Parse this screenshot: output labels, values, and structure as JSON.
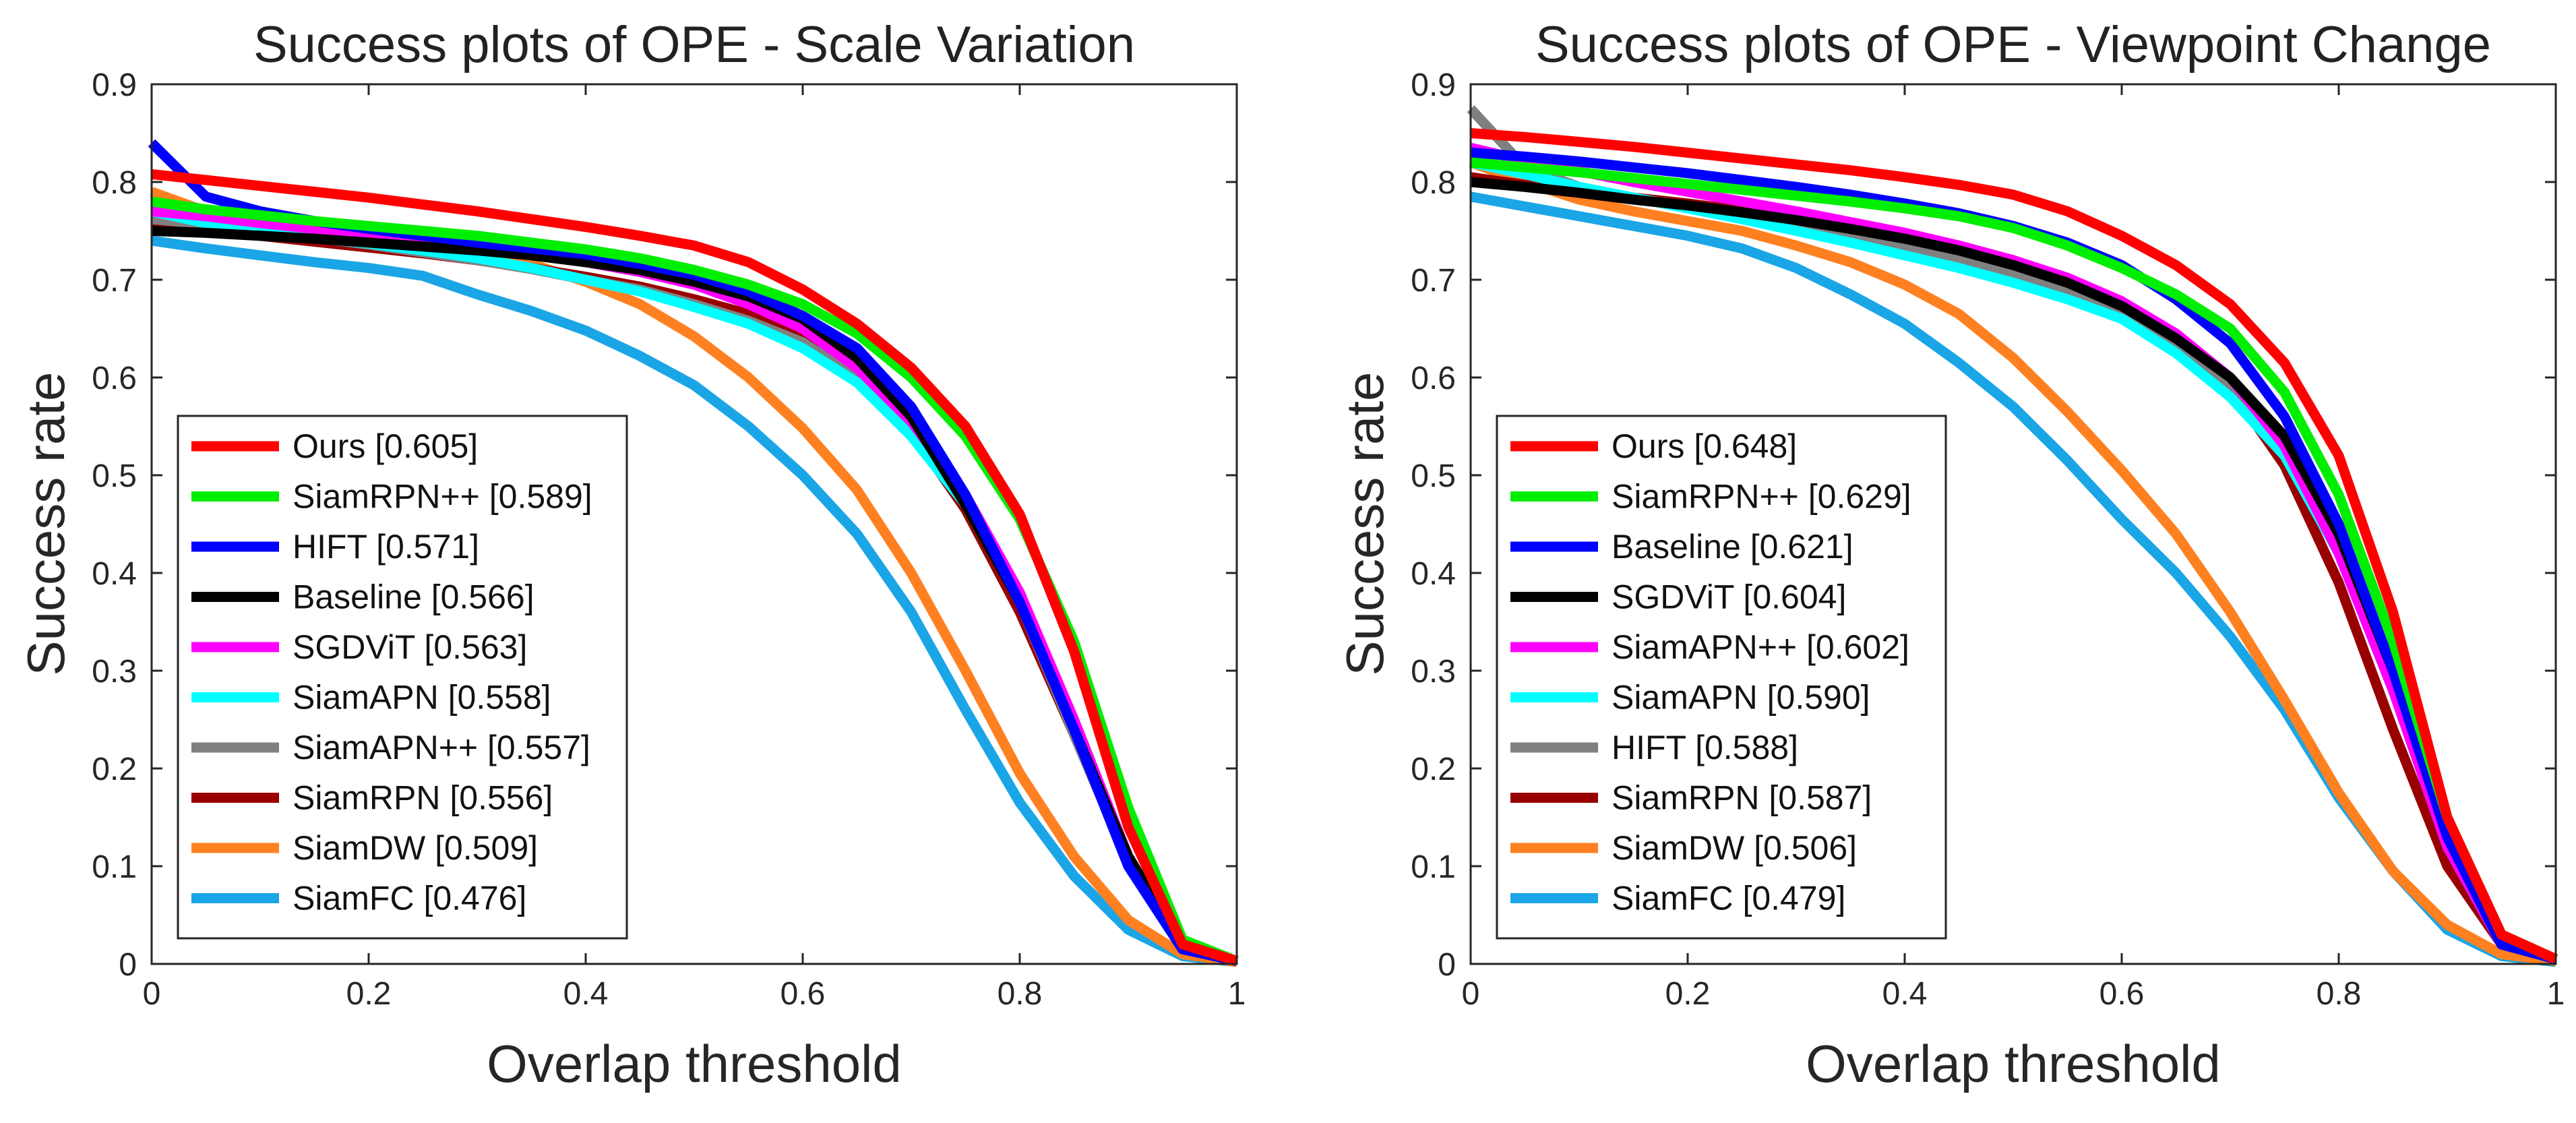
{
  "chart_data": [
    {
      "type": "line",
      "title": "Success plots of OPE - Scale Variation",
      "xlabel": "Overlap threshold",
      "ylabel": "Success rate",
      "xlim": [
        0,
        1
      ],
      "ylim": [
        0,
        0.9
      ],
      "xticks": [
        "0",
        "0.2",
        "0.4",
        "0.6",
        "0.8",
        "1"
      ],
      "yticks": [
        "0",
        "0.1",
        "0.2",
        "0.3",
        "0.4",
        "0.5",
        "0.6",
        "0.7",
        "0.8",
        "0.9"
      ],
      "legend_position": "bottom-left",
      "x": [
        0,
        0.05,
        0.1,
        0.15,
        0.2,
        0.25,
        0.3,
        0.35,
        0.4,
        0.45,
        0.5,
        0.55,
        0.6,
        0.65,
        0.7,
        0.75,
        0.8,
        0.85,
        0.9,
        0.95,
        1.0
      ],
      "series": [
        {
          "name": "Ours [0.605]",
          "color": "#ff0000",
          "values": [
            0.808,
            0.802,
            0.796,
            0.79,
            0.784,
            0.777,
            0.77,
            0.762,
            0.754,
            0.745,
            0.735,
            0.718,
            0.69,
            0.655,
            0.61,
            0.55,
            0.46,
            0.32,
            0.14,
            0.02,
            0.003
          ]
        },
        {
          "name": "SiamRPN++ [0.589]",
          "color": "#00ee00",
          "values": [
            0.78,
            0.772,
            0.766,
            0.76,
            0.755,
            0.75,
            0.745,
            0.738,
            0.731,
            0.722,
            0.71,
            0.695,
            0.675,
            0.645,
            0.6,
            0.54,
            0.455,
            0.33,
            0.16,
            0.025,
            0.003
          ]
        },
        {
          "name": "HIFT [0.571]",
          "color": "#0000ff",
          "values": [
            0.84,
            0.785,
            0.77,
            0.76,
            0.752,
            0.745,
            0.738,
            0.732,
            0.726,
            0.716,
            0.705,
            0.688,
            0.663,
            0.63,
            0.57,
            0.48,
            0.37,
            0.24,
            0.1,
            0.015,
            0.003
          ]
        },
        {
          "name": "Baseline [0.566]",
          "color": "#000000",
          "values": [
            0.75,
            0.748,
            0.745,
            0.742,
            0.738,
            0.734,
            0.73,
            0.725,
            0.718,
            0.71,
            0.698,
            0.683,
            0.66,
            0.62,
            0.56,
            0.47,
            0.37,
            0.24,
            0.11,
            0.018,
            0.003
          ]
        },
        {
          "name": "SGDViT [0.563]",
          "color": "#ff00ff",
          "values": [
            0.77,
            0.765,
            0.758,
            0.752,
            0.746,
            0.74,
            0.733,
            0.726,
            0.718,
            0.708,
            0.695,
            0.675,
            0.65,
            0.61,
            0.555,
            0.48,
            0.38,
            0.25,
            0.11,
            0.02,
            0.003
          ]
        },
        {
          "name": "SiamAPN [0.558]",
          "color": "#00ffff",
          "values": [
            0.77,
            0.758,
            0.75,
            0.743,
            0.737,
            0.73,
            0.722,
            0.712,
            0.7,
            0.688,
            0.672,
            0.655,
            0.63,
            0.595,
            0.54,
            0.47,
            0.37,
            0.24,
            0.11,
            0.02,
            0.003
          ]
        },
        {
          "name": "SiamAPN++ [0.557]",
          "color": "#808080",
          "values": [
            0.762,
            0.757,
            0.75,
            0.743,
            0.736,
            0.728,
            0.72,
            0.711,
            0.7,
            0.69,
            0.675,
            0.658,
            0.636,
            0.6,
            0.545,
            0.47,
            0.37,
            0.235,
            0.105,
            0.018,
            0.003
          ]
        },
        {
          "name": "SiamRPN [0.556]",
          "color": "#990000",
          "values": [
            0.755,
            0.75,
            0.745,
            0.739,
            0.733,
            0.727,
            0.72,
            0.712,
            0.703,
            0.693,
            0.68,
            0.665,
            0.64,
            0.6,
            0.545,
            0.465,
            0.36,
            0.235,
            0.105,
            0.02,
            0.003
          ]
        },
        {
          "name": "SiamDW [0.509]",
          "color": "#ff8020",
          "values": [
            0.79,
            0.77,
            0.76,
            0.752,
            0.745,
            0.737,
            0.727,
            0.716,
            0.698,
            0.675,
            0.642,
            0.6,
            0.548,
            0.485,
            0.4,
            0.3,
            0.195,
            0.11,
            0.045,
            0.01,
            0.002
          ]
        },
        {
          "name": "SiamFC [0.476]",
          "color": "#1aa5e6",
          "values": [
            0.74,
            0.732,
            0.725,
            0.718,
            0.712,
            0.704,
            0.685,
            0.668,
            0.648,
            0.622,
            0.592,
            0.55,
            0.5,
            0.44,
            0.36,
            0.26,
            0.165,
            0.09,
            0.035,
            0.008,
            0.002
          ]
        }
      ]
    },
    {
      "type": "line",
      "title": "Success plots of OPE - Viewpoint Change",
      "xlabel": "Overlap threshold",
      "ylabel": "Success rate",
      "xlim": [
        0,
        1
      ],
      "ylim": [
        0,
        0.9
      ],
      "xticks": [
        "0",
        "0.2",
        "0.4",
        "0.6",
        "0.8",
        "1"
      ],
      "yticks": [
        "0",
        "0.1",
        "0.2",
        "0.3",
        "0.4",
        "0.5",
        "0.6",
        "0.7",
        "0.8",
        "0.9"
      ],
      "legend_position": "bottom-left",
      "x": [
        0,
        0.05,
        0.1,
        0.15,
        0.2,
        0.25,
        0.3,
        0.35,
        0.4,
        0.45,
        0.5,
        0.55,
        0.6,
        0.65,
        0.7,
        0.75,
        0.8,
        0.85,
        0.9,
        0.95,
        1.0
      ],
      "series": [
        {
          "name": "Ours [0.648]",
          "color": "#ff0000",
          "values": [
            0.85,
            0.846,
            0.841,
            0.836,
            0.83,
            0.824,
            0.818,
            0.812,
            0.805,
            0.797,
            0.787,
            0.77,
            0.745,
            0.715,
            0.675,
            0.615,
            0.52,
            0.36,
            0.15,
            0.03,
            0.005
          ]
        },
        {
          "name": "SiamRPN++ [0.629]",
          "color": "#00ee00",
          "values": [
            0.82,
            0.815,
            0.81,
            0.804,
            0.798,
            0.792,
            0.786,
            0.78,
            0.773,
            0.765,
            0.753,
            0.735,
            0.712,
            0.685,
            0.65,
            0.585,
            0.48,
            0.33,
            0.15,
            0.03,
            0.005
          ]
        },
        {
          "name": "Baseline [0.621]",
          "color": "#0000ff",
          "values": [
            0.83,
            0.826,
            0.821,
            0.815,
            0.809,
            0.802,
            0.795,
            0.787,
            0.778,
            0.768,
            0.755,
            0.738,
            0.715,
            0.68,
            0.635,
            0.56,
            0.45,
            0.3,
            0.13,
            0.02,
            0.005
          ]
        },
        {
          "name": "SGDViT [0.604]",
          "color": "#000000",
          "values": [
            0.8,
            0.795,
            0.789,
            0.782,
            0.776,
            0.769,
            0.761,
            0.752,
            0.742,
            0.73,
            0.715,
            0.697,
            0.673,
            0.64,
            0.6,
            0.54,
            0.44,
            0.3,
            0.13,
            0.02,
            0.005
          ]
        },
        {
          "name": "SiamAPN++ [0.602]",
          "color": "#ff00ff",
          "values": [
            0.835,
            0.822,
            0.811,
            0.8,
            0.79,
            0.78,
            0.77,
            0.759,
            0.748,
            0.735,
            0.72,
            0.702,
            0.678,
            0.645,
            0.6,
            0.53,
            0.42,
            0.28,
            0.12,
            0.02,
            0.005
          ]
        },
        {
          "name": "SiamAPN [0.590]",
          "color": "#00ffff",
          "values": [
            0.82,
            0.808,
            0.795,
            0.784,
            0.773,
            0.762,
            0.75,
            0.738,
            0.725,
            0.712,
            0.697,
            0.68,
            0.66,
            0.625,
            0.58,
            0.52,
            0.42,
            0.28,
            0.12,
            0.02,
            0.005
          ]
        },
        {
          "name": "HIFT [0.588]",
          "color": "#808080",
          "values": [
            0.875,
            0.815,
            0.795,
            0.784,
            0.774,
            0.764,
            0.754,
            0.744,
            0.733,
            0.72,
            0.705,
            0.687,
            0.665,
            0.632,
            0.59,
            0.525,
            0.42,
            0.28,
            0.12,
            0.02,
            0.005
          ]
        },
        {
          "name": "SiamRPN [0.587]",
          "color": "#990000",
          "values": [
            0.805,
            0.797,
            0.79,
            0.784,
            0.778,
            0.771,
            0.764,
            0.756,
            0.746,
            0.735,
            0.72,
            0.7,
            0.675,
            0.64,
            0.59,
            0.51,
            0.39,
            0.24,
            0.1,
            0.02,
            0.005
          ]
        },
        {
          "name": "SiamDW [0.506]",
          "color": "#ff8020",
          "values": [
            0.82,
            0.8,
            0.782,
            0.77,
            0.76,
            0.75,
            0.735,
            0.718,
            0.695,
            0.665,
            0.62,
            0.565,
            0.505,
            0.44,
            0.36,
            0.27,
            0.175,
            0.095,
            0.04,
            0.01,
            0.003
          ]
        },
        {
          "name": "SiamFC [0.479]",
          "color": "#1aa5e6",
          "values": [
            0.785,
            0.775,
            0.765,
            0.755,
            0.745,
            0.732,
            0.712,
            0.685,
            0.655,
            0.615,
            0.57,
            0.515,
            0.455,
            0.4,
            0.335,
            0.26,
            0.17,
            0.095,
            0.035,
            0.008,
            0.002
          ]
        }
      ]
    }
  ]
}
